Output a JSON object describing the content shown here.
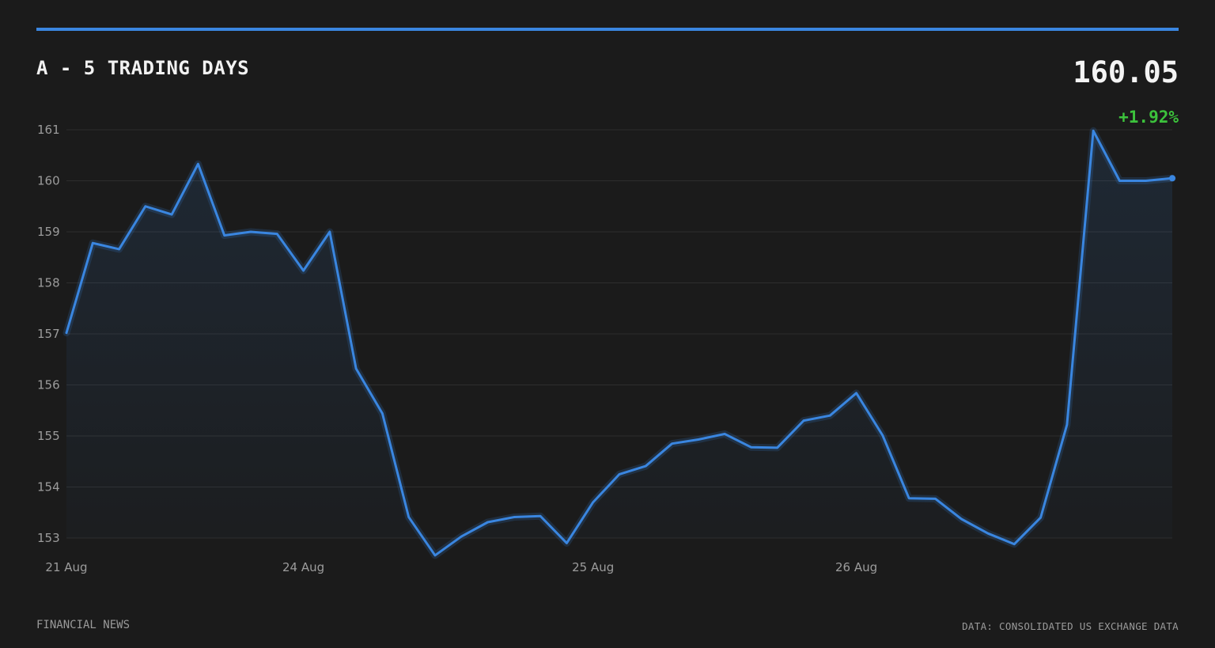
{
  "header": {
    "title": "A - 5 TRADING DAYS",
    "price": "160.05",
    "change": "+1.92%"
  },
  "footer": {
    "source_left": "FINANCIAL NEWS",
    "source_right": "DATA: CONSOLIDATED US EXCHANGE DATA"
  },
  "colors": {
    "line": "#3a86e0",
    "change_positive": "#3cc23c",
    "background": "#1b1b1b"
  },
  "chart_data": {
    "type": "area",
    "title": "A - 5 TRADING DAYS",
    "xlabel": "",
    "ylabel": "",
    "ylim": [
      153,
      161
    ],
    "yticks": [
      161,
      160,
      159,
      158,
      157,
      156,
      155,
      154,
      153
    ],
    "grid": true,
    "legend": "none",
    "x_tick_labels": [
      {
        "label": "21 Aug",
        "index": 0
      },
      {
        "label": "24 Aug",
        "index": 9
      },
      {
        "label": "25 Aug",
        "index": 20
      },
      {
        "label": "26 Aug",
        "index": 30
      }
    ],
    "values": [
      157.02,
      158.78,
      158.66,
      159.5,
      159.34,
      160.33,
      158.93,
      159.0,
      158.96,
      158.24,
      159.0,
      156.32,
      155.44,
      153.41,
      152.66,
      153.03,
      153.31,
      153.41,
      153.43,
      152.9,
      153.7,
      154.25,
      154.41,
      154.85,
      154.93,
      155.04,
      154.78,
      154.77,
      155.3,
      155.4,
      155.84,
      155.01,
      153.78,
      153.77,
      153.37,
      153.09,
      152.88,
      153.4,
      155.22,
      160.98,
      160.0,
      160.0,
      160.05
    ]
  }
}
